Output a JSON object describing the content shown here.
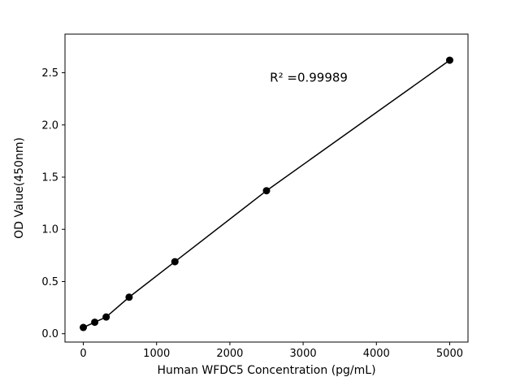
{
  "chart_data": {
    "type": "scatter",
    "title": "",
    "xlabel": "Human WFDC5 Concentration (pg/mL)",
    "ylabel": "OD Value(450nm)",
    "annotation": "R² =0.99989",
    "x": [
      0,
      156,
      312,
      625,
      1250,
      2500,
      5000
    ],
    "y": [
      0.06,
      0.11,
      0.16,
      0.35,
      0.69,
      1.37,
      2.62
    ],
    "line": true,
    "grid": false,
    "legend": "none",
    "marker_color": "#000000",
    "line_color": "#000000",
    "background_color": "#ffffff",
    "xlim": [
      -250,
      5250
    ],
    "ylim": [
      -0.08,
      2.87
    ],
    "xticks": {
      "values": [
        0,
        1000,
        2000,
        3000,
        4000,
        5000
      ],
      "labels": [
        "0",
        "1000",
        "2000",
        "3000",
        "4000",
        "5000"
      ]
    },
    "yticks": {
      "values": [
        0.0,
        0.5,
        1.0,
        1.5,
        2.0,
        2.5
      ],
      "labels": [
        "0.0",
        "0.5",
        "1.0",
        "1.5",
        "2.0",
        "2.5"
      ]
    }
  }
}
